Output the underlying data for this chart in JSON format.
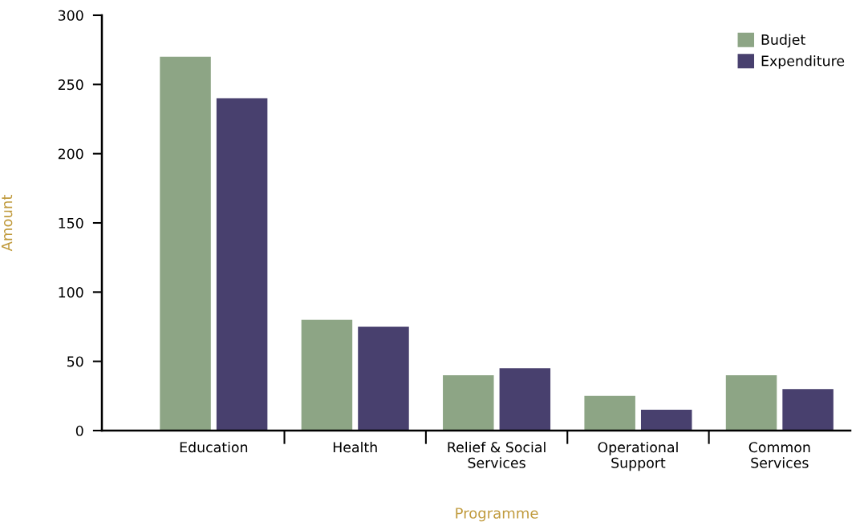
{
  "chart_data": {
    "type": "bar",
    "xlabel": "Programme",
    "ylabel": "Amount",
    "categories": [
      "Education",
      "Health",
      "Relief & Social\nServices",
      "Operational\nSupport",
      "Common\nServices"
    ],
    "series": [
      {
        "name": "Budjet",
        "color": "#8da585",
        "values": [
          270,
          80,
          40,
          25,
          40
        ]
      },
      {
        "name": "Expenditure",
        "color": "#48406e",
        "values": [
          240,
          75,
          45,
          15,
          30
        ]
      }
    ],
    "ylim": [
      0,
      300
    ],
    "yticks": [
      0,
      50,
      100,
      150,
      200,
      250,
      300
    ],
    "grid": false,
    "legend": "top right"
  }
}
